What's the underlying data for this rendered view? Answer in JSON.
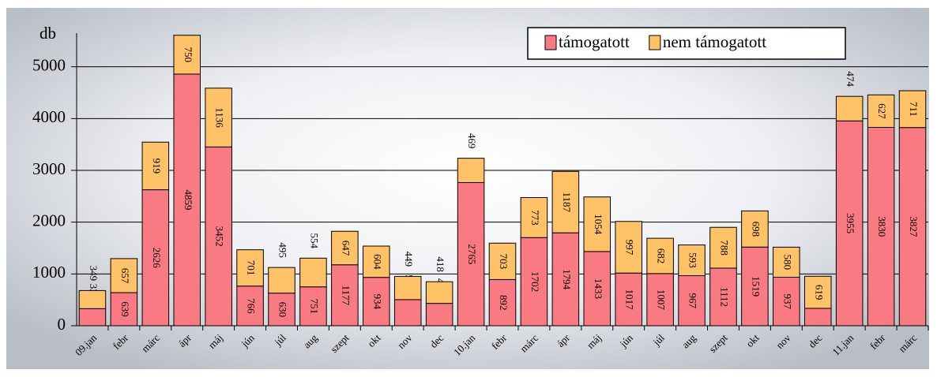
{
  "chart_data": {
    "type": "stacked_bar",
    "y_label": "db",
    "categories": [
      "09.jan",
      "febr",
      "márc",
      "ápr",
      "máj",
      "jún",
      "júl",
      "aug",
      "szept",
      "okt",
      "nov",
      "dec",
      "10.jan",
      "febr",
      "márc",
      "ápr",
      "máj",
      "jún",
      "júl",
      "aug",
      "szept",
      "okt",
      "nov",
      "dec",
      "11.jan",
      "febr",
      "márc"
    ],
    "series": [
      {
        "name": "támogatott",
        "color": "#f97a82",
        "values": [
          330,
          639,
          2626,
          4859,
          3452,
          766,
          630,
          751,
          1177,
          934,
          504,
          432,
          2765,
          892,
          1702,
          1794,
          1433,
          1017,
          1007,
          967,
          1112,
          1519,
          937,
          336,
          3955,
          3830,
          3827
        ]
      },
      {
        "name": "nem támogatott",
        "color": "#ffc266",
        "values": [
          349,
          657,
          919,
          750,
          1136,
          701,
          495,
          554,
          647,
          604,
          449,
          418,
          469,
          703,
          773,
          1187,
          1054,
          997,
          682,
          593,
          788,
          698,
          580,
          619,
          474,
          627,
          711
        ]
      }
    ],
    "ylim": [
      0,
      5650
    ],
    "yticks": [
      0,
      1000,
      2000,
      3000,
      4000,
      5000
    ],
    "grid": true,
    "legend": "upper right"
  }
}
